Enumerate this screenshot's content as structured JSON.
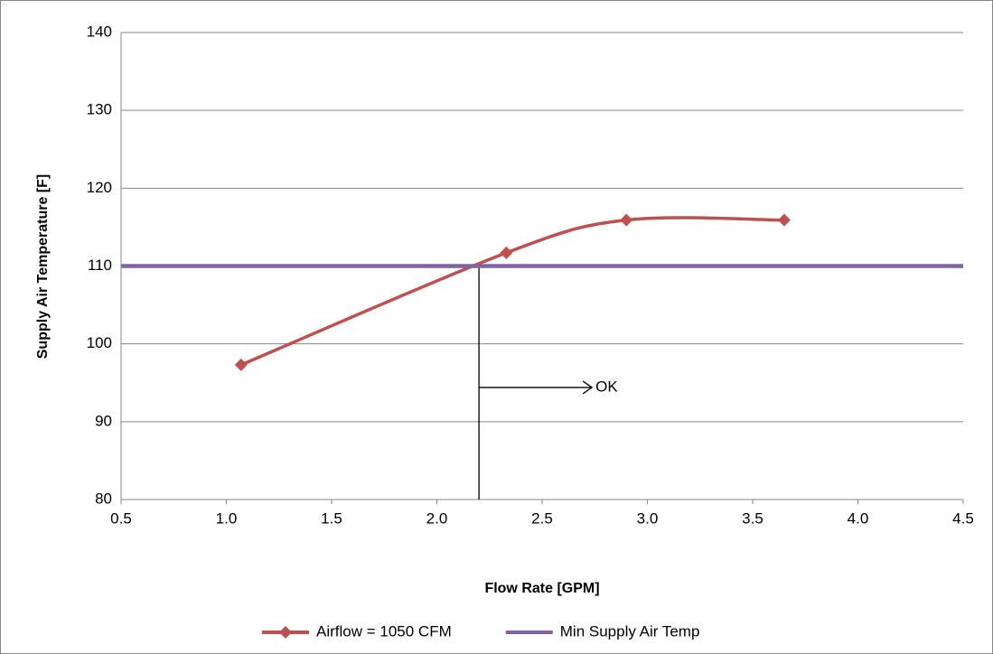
{
  "chart_data": {
    "type": "line",
    "x_label": "Flow Rate [GPM]",
    "y_label": "Supply Air Temperature [F]",
    "series": [
      {
        "name": "Airflow = 1050 CFM",
        "color": "#c0504d",
        "smooth": true,
        "marker": "diamond",
        "x": [
          1.07,
          2.33,
          2.9,
          3.65
        ],
        "values": [
          97.3,
          111.7,
          115.9,
          115.9
        ]
      },
      {
        "name": "Min Supply Air Temp",
        "color": "#8064a2",
        "smooth": false,
        "marker": "none",
        "x": [
          0.5,
          4.5
        ],
        "values": [
          110,
          110
        ]
      }
    ],
    "annotation": {
      "text": "OK",
      "x": 2.2
    },
    "xlim": [
      0.5,
      4.5
    ],
    "xticks": [
      {
        "value": 0.5,
        "label": "0.5"
      },
      {
        "value": 1,
        "label": "1.0"
      },
      {
        "value": 1.5,
        "label": "1.5"
      },
      {
        "value": 2,
        "label": "2.0"
      },
      {
        "value": 2.5,
        "label": "2.5"
      },
      {
        "value": 3,
        "label": "3.0"
      },
      {
        "value": 3.5,
        "label": "3.5"
      },
      {
        "value": 4,
        "label": "4.0"
      },
      {
        "value": 4.5,
        "label": "4.5"
      }
    ],
    "ylim": [
      80,
      140
    ],
    "yticks": [
      80,
      90,
      100,
      110,
      120,
      130,
      140
    ],
    "grid": true,
    "legend": "bottom"
  }
}
